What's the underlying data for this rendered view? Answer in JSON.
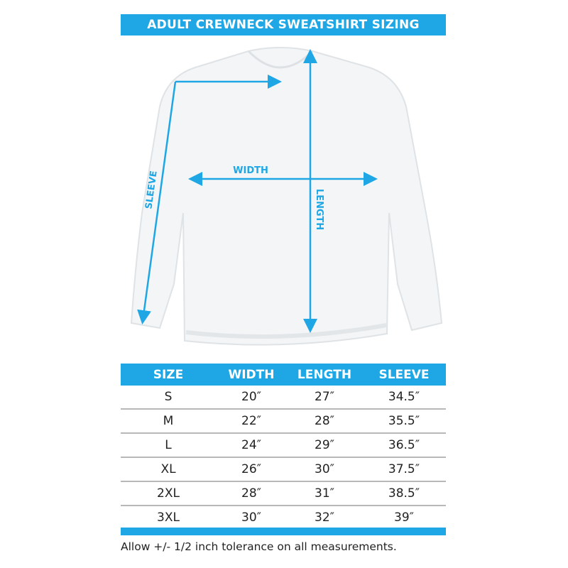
{
  "title": "ADULT CREWNECK SWEATSHIRT SIZING",
  "diagram": {
    "labels": {
      "width": "WIDTH",
      "length": "LENGTH",
      "sleeve": "SLEEVE"
    },
    "accent_color": "#1ea7e4"
  },
  "table": {
    "headers": [
      "SIZE",
      "WIDTH",
      "LENGTH",
      "SLEEVE"
    ],
    "rows": [
      [
        "S",
        "20″",
        "27″",
        "34.5″"
      ],
      [
        "M",
        "22″",
        "28″",
        "35.5″"
      ],
      [
        "L",
        "24″",
        "29″",
        "36.5″"
      ],
      [
        "XL",
        "26″",
        "30″",
        "37.5″"
      ],
      [
        "2XL",
        "28″",
        "31″",
        "38.5″"
      ],
      [
        "3XL",
        "30″",
        "32″",
        "39″"
      ]
    ]
  },
  "footnote": "Allow +/- 1/2 inch tolerance on all measurements."
}
